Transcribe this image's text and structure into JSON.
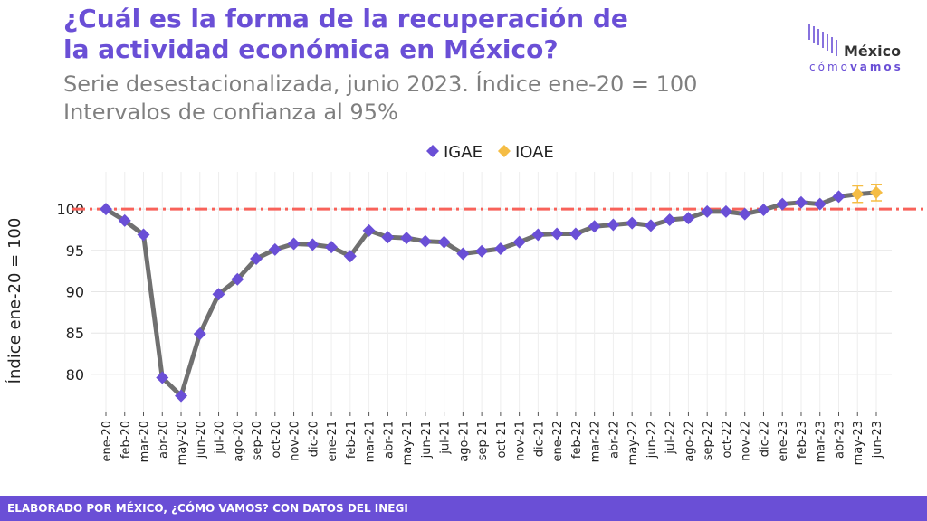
{
  "header": {
    "title": [
      "¿Cuál es la forma de la recuperación de",
      "la actividad económica en México?"
    ],
    "subtitle": [
      "Serie desestacionalizada, junio 2023. Índice ene-20 = 100",
      "Intervalos de confianza al 95%"
    ]
  },
  "logo": {
    "top": "México",
    "bottom_light": "cómo",
    "bottom_bold": "vamos"
  },
  "footer": "ELABORADO POR MÉXICO, ¿CÓMO VAMOS? CON DATOS DEL INEGI",
  "chart_data": {
    "type": "line",
    "y_label": "Índice ene-20 = 100",
    "categories": [
      "ene-20",
      "feb-20",
      "mar-20",
      "abr-20",
      "may-20",
      "jun-20",
      "jul-20",
      "ago-20",
      "sep-20",
      "oct-20",
      "nov-20",
      "dic-20",
      "ene-21",
      "feb-21",
      "mar-21",
      "abr-21",
      "may-21",
      "jun-21",
      "jul-21",
      "ago-21",
      "sep-21",
      "oct-21",
      "nov-21",
      "dic-21",
      "ene-22",
      "feb-22",
      "mar-22",
      "abr-22",
      "may-22",
      "jun-22",
      "jul-22",
      "ago-22",
      "sep-22",
      "oct-22",
      "nov-22",
      "dic-22",
      "ene-23",
      "feb-23",
      "mar-23",
      "abr-23",
      "may-23",
      "jun-23"
    ],
    "series": [
      {
        "name": "IGAE",
        "color": "#6a4fd6",
        "values": [
          100,
          98.6,
          96.9,
          79.6,
          77.4,
          84.9,
          89.7,
          91.5,
          94.0,
          95.1,
          95.8,
          95.7,
          95.4,
          94.3,
          97.4,
          96.6,
          96.5,
          96.1,
          96.0,
          94.6,
          94.9,
          95.2,
          96.0,
          96.9,
          97.0,
          97.0,
          97.9,
          98.1,
          98.3,
          98.0,
          98.7,
          98.9,
          99.7,
          99.7,
          99.4,
          99.9,
          100.6,
          100.8,
          100.6,
          101.5,
          null,
          null
        ]
      },
      {
        "name": "IOAE",
        "color": "#f5bd45",
        "values": [
          null,
          null,
          null,
          null,
          null,
          null,
          null,
          null,
          null,
          null,
          null,
          null,
          null,
          null,
          null,
          null,
          null,
          null,
          null,
          null,
          null,
          null,
          null,
          null,
          null,
          null,
          null,
          null,
          null,
          null,
          null,
          null,
          null,
          null,
          null,
          null,
          null,
          null,
          null,
          null,
          101.8,
          102.0
        ],
        "lower": [
          null,
          null,
          null,
          null,
          null,
          null,
          null,
          null,
          null,
          null,
          null,
          null,
          null,
          null,
          null,
          null,
          null,
          null,
          null,
          null,
          null,
          null,
          null,
          null,
          null,
          null,
          null,
          null,
          null,
          null,
          null,
          null,
          null,
          null,
          null,
          null,
          null,
          null,
          null,
          null,
          100.8,
          101.0
        ],
        "upper": [
          null,
          null,
          null,
          null,
          null,
          null,
          null,
          null,
          null,
          null,
          null,
          null,
          null,
          null,
          null,
          null,
          null,
          null,
          null,
          null,
          null,
          null,
          null,
          null,
          null,
          null,
          null,
          null,
          null,
          null,
          null,
          null,
          null,
          null,
          null,
          null,
          null,
          null,
          null,
          null,
          102.8,
          103.0
        ]
      }
    ],
    "line_color": "#707070",
    "reference_line": 100,
    "reference_color": "#f8625a",
    "ylim": [
      75.5,
      104.5
    ],
    "yticks": [
      80,
      85,
      90,
      95,
      100
    ],
    "grid": true,
    "legend": "top"
  }
}
